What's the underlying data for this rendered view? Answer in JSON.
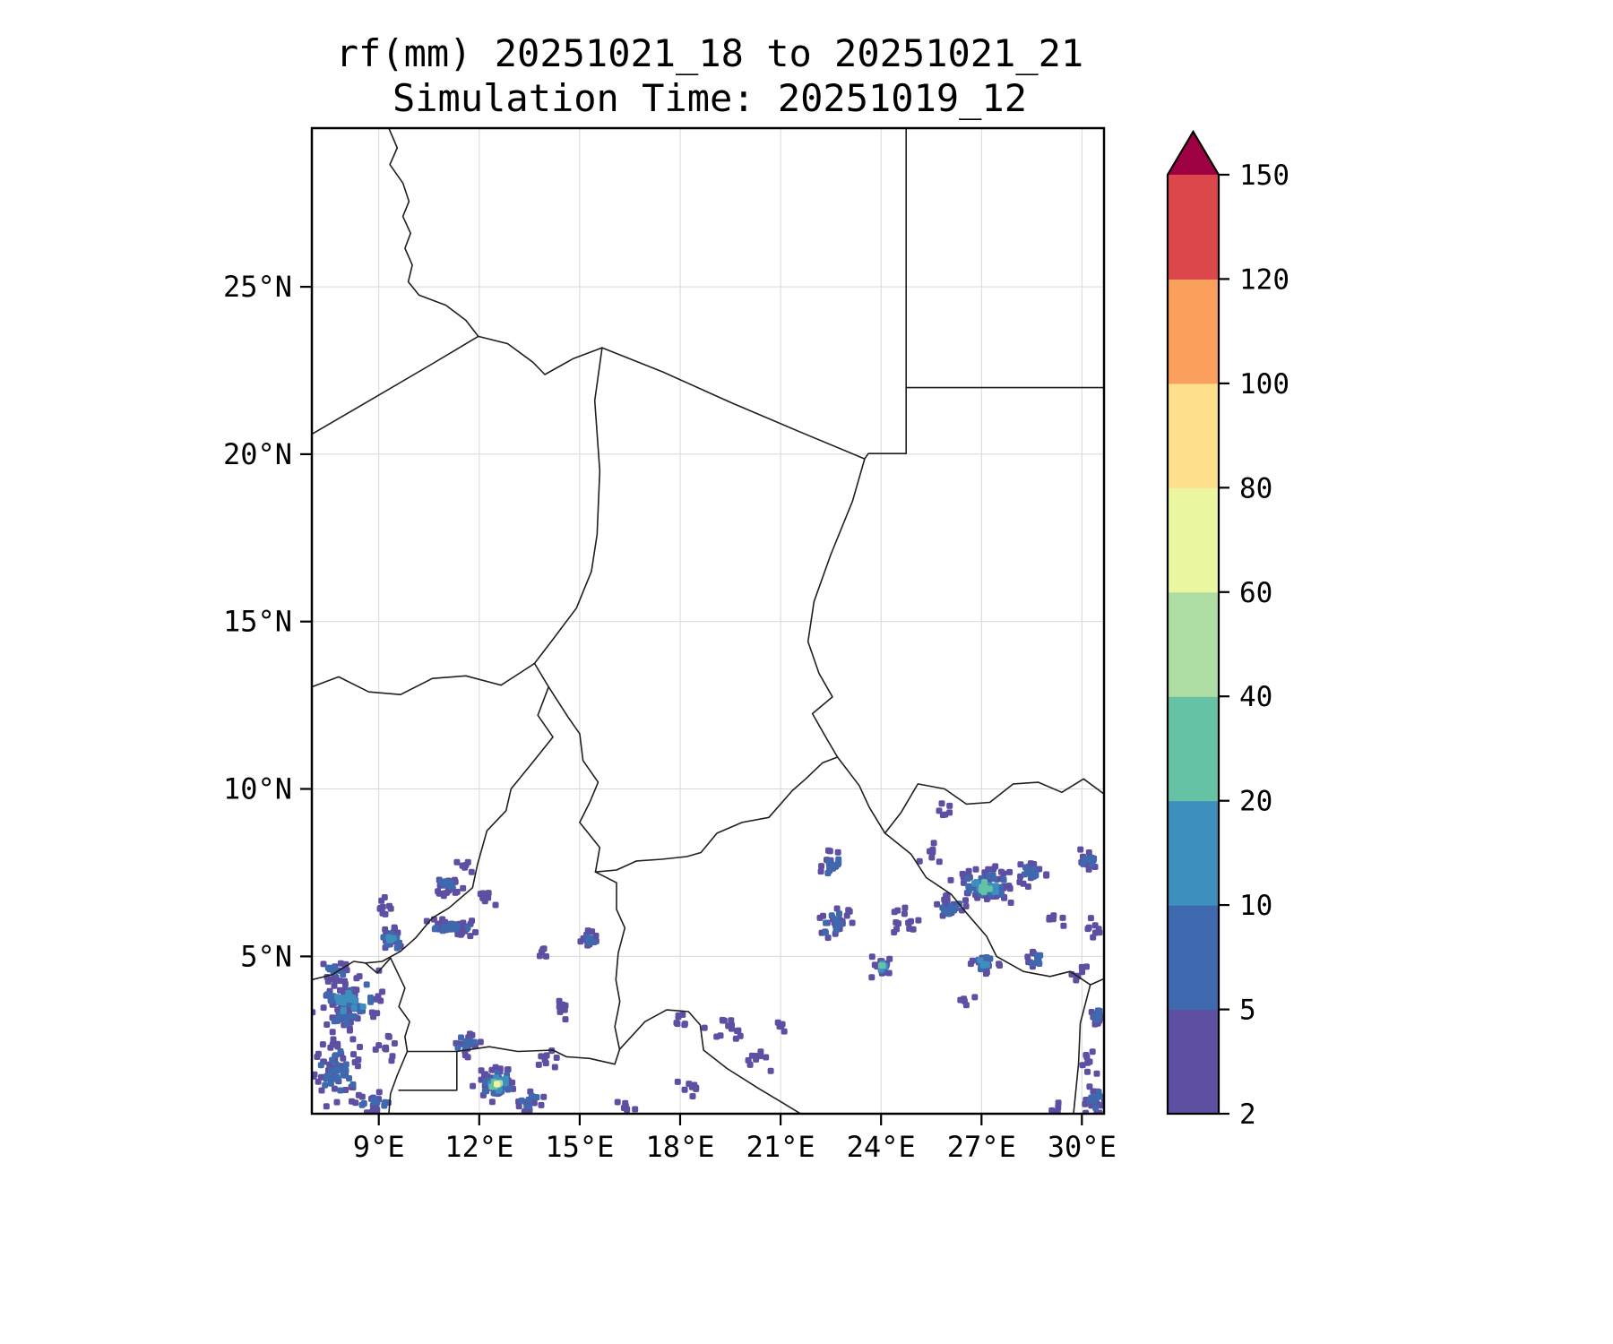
{
  "title": {
    "line1": "rf(mm) 20251021_18 to 20251021_21",
    "line2": "Simulation Time: 20251019_12"
  },
  "chart_data": {
    "type": "heatmap",
    "subtype": "precipitation_map_contourf",
    "variable": "rf",
    "units": "mm",
    "valid_period": "20251021_18 to 20251021_21",
    "simulation_time": "20251019_12",
    "extent": {
      "lon_min": 7.0,
      "lon_max": 30.66,
      "lat_min": 0.3,
      "lat_max": 29.74
    },
    "x_ticks": [
      {
        "lon": 9,
        "label": "9°E"
      },
      {
        "lon": 12,
        "label": "12°E"
      },
      {
        "lon": 15,
        "label": "15°E"
      },
      {
        "lon": 18,
        "label": "18°E"
      },
      {
        "lon": 21,
        "label": "21°E"
      },
      {
        "lon": 24,
        "label": "24°E"
      },
      {
        "lon": 27,
        "label": "27°E"
      },
      {
        "lon": 30,
        "label": "30°E"
      }
    ],
    "y_ticks": [
      {
        "lat": 5,
        "label": "5°N"
      },
      {
        "lat": 10,
        "label": "10°N"
      },
      {
        "lat": 15,
        "label": "15°N"
      },
      {
        "lat": 20,
        "label": "20°N"
      },
      {
        "lat": 25,
        "label": "25°N"
      }
    ],
    "colorbar": {
      "levels": [
        2,
        5,
        10,
        20,
        40,
        60,
        80,
        100,
        120,
        150
      ],
      "colors": [
        "#5e4fa2",
        "#3f69ae",
        "#3d8fbe",
        "#66c2a5",
        "#aedda4",
        "#ebf7a0",
        "#fedf8c",
        "#fba05c",
        "#dc474c"
      ],
      "over_color": "#9e0142",
      "extend": "max"
    },
    "grid_color": "#d7d7d7",
    "border_color": "#1f1f1f",
    "borders": [
      [
        [
          9.3,
          29.74
        ],
        [
          9.55,
          29.15
        ],
        [
          9.33,
          28.65
        ],
        [
          9.72,
          28.1
        ],
        [
          9.9,
          27.55
        ],
        [
          9.72,
          27.1
        ],
        [
          9.95,
          26.6
        ],
        [
          9.78,
          26.15
        ],
        [
          10.0,
          25.65
        ],
        [
          9.88,
          25.15
        ],
        [
          10.2,
          24.75
        ],
        [
          11.0,
          24.45
        ],
        [
          11.6,
          24.0
        ],
        [
          11.97,
          23.52
        ]
      ],
      [
        [
          11.97,
          23.52
        ],
        [
          10.6,
          22.7
        ],
        [
          8.8,
          21.65
        ],
        [
          7.0,
          20.6
        ]
      ],
      [
        [
          11.97,
          23.52
        ],
        [
          12.85,
          23.3
        ],
        [
          13.6,
          22.75
        ],
        [
          13.96,
          22.38
        ],
        [
          14.8,
          22.85
        ],
        [
          15.67,
          23.18
        ],
        [
          17.5,
          22.45
        ],
        [
          19.5,
          21.55
        ],
        [
          21.5,
          20.7
        ],
        [
          23.51,
          19.86
        ]
      ],
      [
        [
          23.51,
          19.86
        ],
        [
          23.62,
          20.02
        ],
        [
          24.75,
          20.02
        ],
        [
          24.75,
          21.99
        ]
      ],
      [
        [
          24.75,
          29.74
        ],
        [
          24.75,
          21.99
        ]
      ],
      [
        [
          24.75,
          21.99
        ],
        [
          30.66,
          21.99
        ]
      ],
      [
        [
          23.51,
          19.86
        ],
        [
          23.15,
          18.6
        ],
        [
          22.5,
          17.0
        ],
        [
          22.0,
          15.6
        ],
        [
          21.82,
          14.4
        ],
        [
          22.15,
          13.45
        ],
        [
          22.55,
          12.75
        ],
        [
          21.95,
          12.25
        ],
        [
          22.35,
          11.55
        ],
        [
          22.7,
          10.95
        ]
      ],
      [
        [
          15.67,
          23.18
        ],
        [
          15.45,
          21.6
        ],
        [
          15.6,
          19.5
        ],
        [
          15.52,
          17.6
        ],
        [
          15.35,
          16.5
        ],
        [
          14.9,
          15.4
        ],
        [
          14.15,
          14.4
        ],
        [
          13.65,
          13.75
        ]
      ],
      [
        [
          7.0,
          13.05
        ],
        [
          7.8,
          13.35
        ],
        [
          8.7,
          12.9
        ],
        [
          9.65,
          12.82
        ],
        [
          10.6,
          13.3
        ],
        [
          11.6,
          13.38
        ],
        [
          12.65,
          13.1
        ],
        [
          13.3,
          13.52
        ],
        [
          13.65,
          13.75
        ]
      ],
      [
        [
          13.65,
          13.75
        ],
        [
          14.07,
          13.05
        ]
      ],
      [
        [
          14.07,
          13.05
        ],
        [
          14.65,
          12.15
        ],
        [
          15.0,
          11.65
        ],
        [
          15.1,
          10.85
        ],
        [
          15.55,
          10.2
        ],
        [
          15.3,
          9.6
        ],
        [
          15.0,
          9.0
        ],
        [
          15.6,
          8.25
        ],
        [
          15.47,
          7.52
        ]
      ],
      [
        [
          14.07,
          13.05
        ],
        [
          13.75,
          12.2
        ],
        [
          14.2,
          11.55
        ],
        [
          13.6,
          10.8
        ],
        [
          12.95,
          10.0
        ],
        [
          12.8,
          9.35
        ],
        [
          12.23,
          8.75
        ],
        [
          11.95,
          7.75
        ],
        [
          11.8,
          7.05
        ],
        [
          11.1,
          6.45
        ],
        [
          10.6,
          6.15
        ],
        [
          10.1,
          5.55
        ],
        [
          9.65,
          5.15
        ],
        [
          9.1,
          4.85
        ],
        [
          8.6,
          4.8
        ]
      ],
      [
        [
          7.0,
          4.3
        ],
        [
          7.6,
          4.45
        ],
        [
          8.25,
          4.85
        ],
        [
          8.6,
          4.8
        ],
        [
          8.95,
          4.5
        ],
        [
          9.35,
          4.95
        ],
        [
          9.78,
          4.05
        ],
        [
          9.6,
          3.5
        ],
        [
          9.92,
          3.05
        ],
        [
          9.78,
          2.6
        ],
        [
          9.85,
          2.16
        ],
        [
          9.55,
          1.45
        ],
        [
          9.35,
          0.9
        ],
        [
          9.3,
          0.3
        ]
      ],
      [
        [
          9.85,
          2.16
        ],
        [
          11.33,
          2.16
        ],
        [
          11.33,
          1.0
        ],
        [
          9.6,
          1.0
        ]
      ],
      [
        [
          11.33,
          2.16
        ],
        [
          12.3,
          2.3
        ],
        [
          13.15,
          2.16
        ],
        [
          14.2,
          2.2
        ],
        [
          14.6,
          2.0
        ],
        [
          15.3,
          1.95
        ],
        [
          16.05,
          1.78
        ],
        [
          16.19,
          2.22
        ]
      ],
      [
        [
          15.47,
          7.52
        ],
        [
          16.1,
          7.2
        ],
        [
          16.1,
          6.4
        ],
        [
          16.35,
          5.85
        ],
        [
          16.15,
          5.1
        ],
        [
          16.08,
          4.3
        ],
        [
          16.2,
          3.65
        ],
        [
          16.05,
          2.9
        ],
        [
          16.19,
          2.22
        ]
      ],
      [
        [
          15.47,
          7.52
        ],
        [
          16.1,
          7.58
        ],
        [
          16.7,
          7.85
        ],
        [
          17.45,
          7.9
        ],
        [
          18.2,
          7.98
        ],
        [
          18.62,
          8.1
        ],
        [
          19.1,
          8.68
        ],
        [
          19.85,
          9.0
        ],
        [
          20.65,
          9.15
        ],
        [
          21.35,
          9.95
        ],
        [
          21.75,
          10.3
        ],
        [
          22.25,
          10.78
        ],
        [
          22.7,
          10.95
        ]
      ],
      [
        [
          22.7,
          10.95
        ],
        [
          23.35,
          10.1
        ],
        [
          23.65,
          9.45
        ],
        [
          24.12,
          8.68
        ]
      ],
      [
        [
          24.12,
          8.68
        ],
        [
          24.6,
          9.3
        ],
        [
          25.1,
          10.15
        ],
        [
          25.9,
          10.0
        ],
        [
          26.55,
          9.55
        ],
        [
          27.25,
          9.6
        ],
        [
          27.95,
          10.15
        ],
        [
          28.7,
          10.2
        ],
        [
          29.4,
          9.9
        ],
        [
          30.05,
          10.3
        ],
        [
          30.66,
          9.85
        ]
      ],
      [
        [
          24.12,
          8.68
        ],
        [
          24.9,
          8.05
        ],
        [
          25.35,
          7.35
        ],
        [
          26.1,
          6.85
        ],
        [
          26.55,
          6.3
        ],
        [
          27.15,
          5.6
        ],
        [
          27.45,
          5.0
        ],
        [
          28.25,
          4.55
        ],
        [
          29.05,
          4.4
        ],
        [
          29.65,
          4.55
        ],
        [
          30.25,
          4.15
        ],
        [
          30.66,
          4.33
        ]
      ],
      [
        [
          16.19,
          2.22
        ],
        [
          16.95,
          3.05
        ],
        [
          17.6,
          3.4
        ],
        [
          18.25,
          3.35
        ],
        [
          18.6,
          2.95
        ],
        [
          18.7,
          2.2
        ],
        [
          19.4,
          1.65
        ],
        [
          20.35,
          1.05
        ],
        [
          21.1,
          0.6
        ],
        [
          21.6,
          0.3
        ]
      ],
      [
        [
          30.25,
          4.15
        ],
        [
          29.95,
          3.0
        ],
        [
          29.9,
          1.8
        ],
        [
          29.75,
          0.3
        ]
      ]
    ],
    "rain_blobs": [
      {
        "lon": 9.38,
        "lat": 5.52,
        "w": 0.45,
        "h": 0.45,
        "n": 22,
        "lv": 2
      },
      {
        "lon": 9.1,
        "lat": 6.5,
        "w": 0.35,
        "h": 0.4,
        "n": 9,
        "lv": 0
      },
      {
        "lon": 11.15,
        "lat": 5.88,
        "w": 0.9,
        "h": 0.28,
        "n": 38,
        "lv": 1
      },
      {
        "lon": 11.07,
        "lat": 7.07,
        "w": 0.55,
        "h": 0.35,
        "n": 20,
        "lv": 1
      },
      {
        "lon": 12.27,
        "lat": 6.8,
        "w": 0.35,
        "h": 0.3,
        "n": 9,
        "lv": 0
      },
      {
        "lon": 11.6,
        "lat": 7.75,
        "w": 0.3,
        "h": 0.3,
        "n": 6,
        "lv": 0
      },
      {
        "lon": 8.12,
        "lat": 3.59,
        "w": 1.2,
        "h": 1.1,
        "n": 60,
        "lv": 2
      },
      {
        "lon": 7.72,
        "lat": 1.58,
        "w": 0.9,
        "h": 1.2,
        "n": 45,
        "lv": 1
      },
      {
        "lon": 8.93,
        "lat": 0.65,
        "w": 0.8,
        "h": 0.5,
        "n": 16,
        "lv": 1
      },
      {
        "lon": 7.72,
        "lat": 4.53,
        "w": 0.7,
        "h": 0.4,
        "n": 14,
        "lv": 1
      },
      {
        "lon": 9.19,
        "lat": 2.25,
        "w": 0.4,
        "h": 0.5,
        "n": 10,
        "lv": 0
      },
      {
        "lon": 12.54,
        "lat": 1.18,
        "w": 0.75,
        "h": 0.65,
        "n": 48,
        "lv": 5
      },
      {
        "lon": 11.6,
        "lat": 2.39,
        "w": 0.5,
        "h": 0.45,
        "n": 14,
        "lv": 1
      },
      {
        "lon": 13.48,
        "lat": 0.65,
        "w": 0.55,
        "h": 0.4,
        "n": 12,
        "lv": 1
      },
      {
        "lon": 14.01,
        "lat": 1.99,
        "w": 0.4,
        "h": 0.35,
        "n": 8,
        "lv": 0
      },
      {
        "lon": 14.41,
        "lat": 3.46,
        "w": 0.35,
        "h": 0.4,
        "n": 8,
        "lv": 0
      },
      {
        "lon": 15.27,
        "lat": 5.52,
        "w": 0.4,
        "h": 0.35,
        "n": 10,
        "lv": 1
      },
      {
        "lon": 13.95,
        "lat": 5.15,
        "w": 0.25,
        "h": 0.25,
        "n": 5,
        "lv": 0
      },
      {
        "lon": 16.4,
        "lat": 0.55,
        "w": 0.35,
        "h": 0.3,
        "n": 7,
        "lv": 0
      },
      {
        "lon": 19.31,
        "lat": 2.79,
        "w": 0.6,
        "h": 0.55,
        "n": 14,
        "lv": 0
      },
      {
        "lon": 20.3,
        "lat": 1.85,
        "w": 0.45,
        "h": 0.4,
        "n": 9,
        "lv": 0
      },
      {
        "lon": 17.95,
        "lat": 3.06,
        "w": 0.35,
        "h": 0.35,
        "n": 7,
        "lv": 0
      },
      {
        "lon": 18.3,
        "lat": 1.05,
        "w": 0.4,
        "h": 0.35,
        "n": 8,
        "lv": 0
      },
      {
        "lon": 21.0,
        "lat": 2.9,
        "w": 0.3,
        "h": 0.25,
        "n": 5,
        "lv": 0
      },
      {
        "lon": 22.52,
        "lat": 7.79,
        "w": 0.4,
        "h": 0.55,
        "n": 13,
        "lv": 1
      },
      {
        "lon": 22.63,
        "lat": 6.0,
        "w": 0.6,
        "h": 0.55,
        "n": 22,
        "lv": 1
      },
      {
        "lon": 24.05,
        "lat": 4.71,
        "w": 0.4,
        "h": 0.4,
        "n": 12,
        "lv": 3
      },
      {
        "lon": 24.77,
        "lat": 6.05,
        "w": 0.55,
        "h": 0.45,
        "n": 14,
        "lv": 0
      },
      {
        "lon": 25.5,
        "lat": 8.1,
        "w": 0.35,
        "h": 0.35,
        "n": 7,
        "lv": 0
      },
      {
        "lon": 27.13,
        "lat": 7.07,
        "w": 1.1,
        "h": 0.65,
        "n": 65,
        "lv": 3
      },
      {
        "lon": 26.06,
        "lat": 6.53,
        "w": 0.55,
        "h": 0.45,
        "n": 16,
        "lv": 1
      },
      {
        "lon": 28.47,
        "lat": 7.47,
        "w": 0.55,
        "h": 0.5,
        "n": 16,
        "lv": 1
      },
      {
        "lon": 25.9,
        "lat": 9.35,
        "w": 0.3,
        "h": 0.3,
        "n": 6,
        "lv": 0
      },
      {
        "lon": 27.13,
        "lat": 4.79,
        "w": 0.6,
        "h": 0.4,
        "n": 18,
        "lv": 2
      },
      {
        "lon": 26.6,
        "lat": 3.6,
        "w": 0.3,
        "h": 0.3,
        "n": 5,
        "lv": 0
      },
      {
        "lon": 28.6,
        "lat": 4.9,
        "w": 0.4,
        "h": 0.35,
        "n": 9,
        "lv": 1
      },
      {
        "lon": 29.2,
        "lat": 6.1,
        "w": 0.3,
        "h": 0.3,
        "n": 6,
        "lv": 0
      },
      {
        "lon": 30.21,
        "lat": 7.92,
        "w": 0.4,
        "h": 0.5,
        "n": 11,
        "lv": 1
      },
      {
        "lon": 30.39,
        "lat": 5.86,
        "w": 0.3,
        "h": 0.4,
        "n": 8,
        "lv": 0
      },
      {
        "lon": 29.94,
        "lat": 4.44,
        "w": 0.3,
        "h": 0.35,
        "n": 7,
        "lv": 0
      },
      {
        "lon": 30.47,
        "lat": 3.24,
        "w": 0.35,
        "h": 0.45,
        "n": 10,
        "lv": 1
      },
      {
        "lon": 30.21,
        "lat": 1.85,
        "w": 0.3,
        "h": 0.4,
        "n": 8,
        "lv": 0
      },
      {
        "lon": 30.39,
        "lat": 0.7,
        "w": 0.5,
        "h": 0.6,
        "n": 18,
        "lv": 1
      },
      {
        "lon": 29.3,
        "lat": 0.45,
        "w": 0.4,
        "h": 0.3,
        "n": 7,
        "lv": 0
      }
    ]
  }
}
